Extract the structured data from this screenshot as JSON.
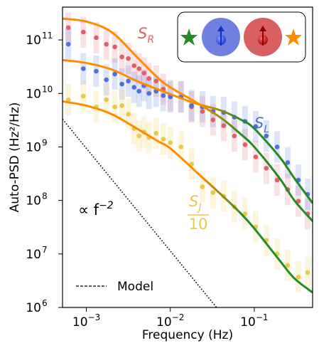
{
  "chart_data": {
    "type": "scatter",
    "xlabel": "Frequency (Hz)",
    "ylabel": "Auto-PSD (Hz²/Hz)",
    "xscale": "log",
    "yscale": "log",
    "xlim": [
      0.00052,
      0.495
    ],
    "ylim": [
      1000000,
      410000000000
    ],
    "xticks": [
      {
        "value": 0.001,
        "label": "10",
        "exp": "−3"
      },
      {
        "value": 0.01,
        "label": "10",
        "exp": "−2"
      },
      {
        "value": 0.1,
        "label": "10",
        "exp": "−1"
      }
    ],
    "yticks": [
      {
        "value": 1000000,
        "label": "10",
        "exp": "6"
      },
      {
        "value": 10000000,
        "label": "10",
        "exp": "7"
      },
      {
        "value": 100000000,
        "label": "10",
        "exp": "8"
      },
      {
        "value": 1000000000,
        "label": "10",
        "exp": "9"
      },
      {
        "value": 10000000000,
        "label": "10",
        "exp": "10"
      },
      {
        "value": 100000000000,
        "label": "10",
        "exp": "11"
      }
    ],
    "x": [
      0.00061,
      0.00092,
      0.00131,
      0.00173,
      0.00218,
      0.00265,
      0.00316,
      0.0037,
      0.00424,
      0.00486,
      0.00557,
      0.00677,
      0.00823,
      0.01,
      0.0134,
      0.0179,
      0.0241,
      0.0322,
      0.0432,
      0.0579,
      0.0776,
      0.104,
      0.139,
      0.187,
      0.25,
      0.335,
      0.432
    ],
    "model_x": [
      0.00052,
      0.001,
      0.002,
      0.004,
      0.007,
      0.01,
      0.02,
      0.04,
      0.07,
      0.1,
      0.2,
      0.3,
      0.495
    ],
    "model_colors": [
      "#ff8c00",
      "#228b22"
    ],
    "series": [
      {
        "color": "#e0606a",
        "values": [
          170000000000,
          140000000000,
          110000000000,
          83000000000,
          74000000000,
          48000000000,
          45000000000,
          33000000000,
          29000000000,
          24000000000,
          19000000000,
          17000000000,
          12000000000,
          9100000000,
          8600000000,
          5600000000,
          4600000000,
          3200000000,
          2500000000,
          1600000000,
          1100000000,
          650000000,
          400000000,
          240000000,
          160000000,
          97000000,
          56000000
        ],
        "model_values": [
          250000000000,
          220000000000,
          140000000000,
          48000000000,
          20000000000,
          13000000000,
          6900000000,
          3500000000,
          1700000000,
          1000000000,
          260000000,
          100000000,
          41000000
        ]
      },
      {
        "color": "#4f6fdc",
        "values": [
          83000000000,
          29000000000,
          26000000000,
          18000000000,
          23000000000,
          15000000000,
          17000000000,
          13000000000,
          11000000000,
          14000000000,
          10000000000,
          11000000000,
          9100000000,
          8600000000,
          8600000000,
          5900000000,
          5600000000,
          4600000000,
          4400000000,
          3600000000,
          3000000000,
          2400000000,
          1600000000,
          1000000000,
          510000000,
          240000000,
          130000000
        ],
        "model_values": [
          42000000000,
          37000000000,
          28000000000,
          17000000000,
          12000000000,
          9700000000,
          6500000000,
          4800000000,
          3200000000,
          2200000000,
          650000000,
          260000000,
          89000000
        ]
      },
      {
        "color": "#e8c94a",
        "values": [
          7600000000,
          8900000000,
          5600000000,
          7600000000,
          5600000000,
          5900000000,
          4100000000,
          2200000000,
          1600000000,
          1900000000,
          1500000000,
          1800000000,
          1400000000,
          1200000000,
          1000000000,
          480000000,
          180000000,
          140000000,
          120000000,
          76000000,
          56000000,
          32000000,
          18000000,
          10000000,
          6100000,
          3700000,
          4500000
        ],
        "model_values": [
          7100000000,
          5900000000,
          4100000000,
          2200000000,
          1300000000,
          940000000,
          350000000,
          130000000,
          56000000,
          30000000,
          7600000,
          3500000,
          1900000
        ]
      }
    ],
    "reference": {
      "x": [
        0.00052,
        0.0355
      ],
      "values": [
        3300000000,
        1000000
      ],
      "style": "dotted"
    },
    "legend_label": "Model",
    "annotations": [
      {
        "text": "S",
        "sub": "R"
      },
      {
        "text": "S",
        "sub": "L"
      },
      {
        "text": "S",
        "sub": "J",
        "denominator": "10"
      },
      {
        "text": "∝ f",
        "sup": "−2"
      }
    ]
  }
}
